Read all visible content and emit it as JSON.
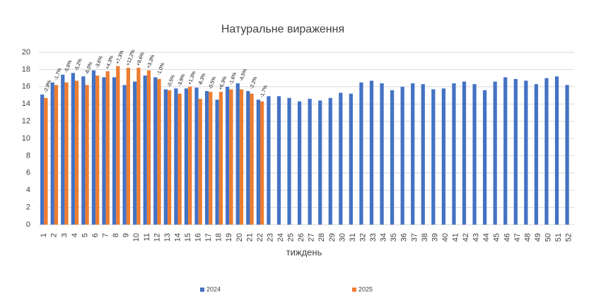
{
  "chart_data": {
    "type": "bar",
    "title": "Натуральне вираження",
    "x_label": "тиждень",
    "categories": [
      "1",
      "2",
      "3",
      "4",
      "5",
      "6",
      "7",
      "8",
      "9",
      "10",
      "11",
      "12",
      "13",
      "14",
      "15",
      "16",
      "17",
      "18",
      "19",
      "20",
      "21",
      "22",
      "23",
      "24",
      "25",
      "26",
      "27",
      "28",
      "29",
      "30",
      "31",
      "32",
      "33",
      "34",
      "35",
      "36",
      "37",
      "38",
      "39",
      "40",
      "41",
      "42",
      "43",
      "44",
      "45",
      "46",
      "47",
      "48",
      "49",
      "50",
      "51",
      "52"
    ],
    "series": [
      {
        "name": "2024",
        "color": "#4472c4",
        "values": [
          15.1,
          16.5,
          17.4,
          17.6,
          17.2,
          17.9,
          17.1,
          17.1,
          16.2,
          16.6,
          17.3,
          17.1,
          15.7,
          15.8,
          15.8,
          15.9,
          15.5,
          14.5,
          16.0,
          16.4,
          15.5,
          14.5,
          14.9,
          14.9,
          14.7,
          14.3,
          14.6,
          14.4,
          14.7,
          15.3,
          15.2,
          16.5,
          16.7,
          16.4,
          15.6,
          16.0,
          16.4,
          16.3,
          15.7,
          15.8,
          16.4,
          16.6,
          16.3,
          15.6,
          16.6,
          17.1,
          16.9,
          16.7,
          16.3,
          17.0,
          17.2,
          16.2
        ]
      },
      {
        "name": "2025",
        "color": "#ed7d31",
        "values": [
          14.7,
          16.2,
          16.5,
          16.7,
          16.2,
          17.3,
          17.8,
          18.4,
          18.2,
          18.2,
          17.9,
          16.9,
          15.6,
          15.2,
          16.0,
          14.6,
          15.4,
          15.4,
          15.7,
          15.7,
          15.2,
          14.3,
          null,
          null,
          null,
          null,
          null,
          null,
          null,
          null,
          null,
          null,
          null,
          null,
          null,
          null,
          null,
          null,
          null,
          null,
          null,
          null,
          null,
          null,
          null,
          null,
          null,
          null,
          null,
          null,
          null,
          null
        ]
      }
    ],
    "annotations": [
      "-2,9%",
      "-1,7%",
      "-5,6%",
      "-5,2%",
      "-6,0%",
      "-3,6%",
      "+4,3%",
      "+7,3%",
      "+12,2%",
      "+9,6%",
      "+3,3%",
      "-1,0%",
      "-0,5%",
      "-3,9%",
      "+1,3%",
      "-8,3%",
      "-0,5%",
      "+6,3%",
      "-1,6%",
      "-4,5%",
      "-2,2%",
      "-1,7%"
    ],
    "ylim": [
      0,
      20
    ],
    "yticks": [
      0,
      2,
      4,
      6,
      8,
      10,
      12,
      14,
      16,
      18,
      20
    ],
    "grid": true,
    "legend": "bottom"
  }
}
